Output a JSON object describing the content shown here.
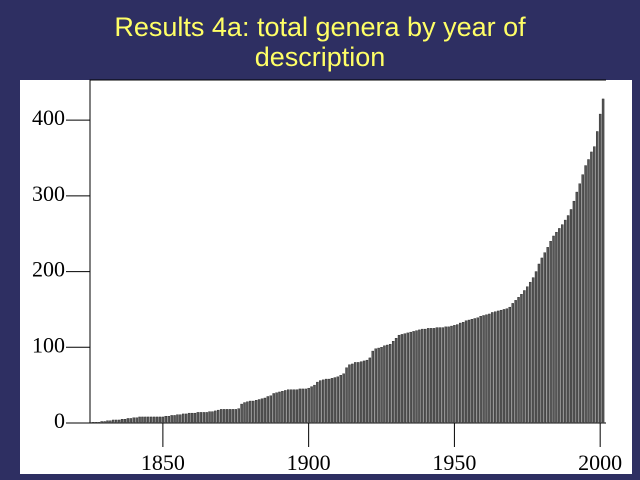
{
  "chart_data": {
    "type": "bar",
    "title": "Results 4a: total genera by year of description",
    "x": [
      1826,
      1827,
      1828,
      1829,
      1830,
      1831,
      1832,
      1833,
      1834,
      1835,
      1836,
      1837,
      1838,
      1839,
      1840,
      1841,
      1842,
      1843,
      1844,
      1845,
      1846,
      1847,
      1848,
      1849,
      1850,
      1851,
      1852,
      1853,
      1854,
      1855,
      1856,
      1857,
      1858,
      1859,
      1860,
      1861,
      1862,
      1863,
      1864,
      1865,
      1866,
      1867,
      1868,
      1869,
      1870,
      1871,
      1872,
      1873,
      1874,
      1875,
      1876,
      1877,
      1878,
      1879,
      1880,
      1881,
      1882,
      1883,
      1884,
      1885,
      1886,
      1887,
      1888,
      1889,
      1890,
      1891,
      1892,
      1893,
      1894,
      1895,
      1896,
      1897,
      1898,
      1899,
      1900,
      1901,
      1902,
      1903,
      1904,
      1905,
      1906,
      1907,
      1908,
      1909,
      1910,
      1911,
      1912,
      1913,
      1914,
      1915,
      1916,
      1917,
      1918,
      1919,
      1920,
      1921,
      1922,
      1923,
      1924,
      1925,
      1926,
      1927,
      1928,
      1929,
      1930,
      1931,
      1932,
      1933,
      1934,
      1935,
      1936,
      1937,
      1938,
      1939,
      1940,
      1941,
      1942,
      1943,
      1944,
      1945,
      1946,
      1947,
      1948,
      1949,
      1950,
      1951,
      1952,
      1953,
      1954,
      1955,
      1956,
      1957,
      1958,
      1959,
      1960,
      1961,
      1962,
      1963,
      1964,
      1965,
      1966,
      1967,
      1968,
      1969,
      1970,
      1971,
      1972,
      1973,
      1974,
      1975,
      1976,
      1977,
      1978,
      1979,
      1980,
      1981,
      1982,
      1983,
      1984,
      1985,
      1986,
      1987,
      1988,
      1989,
      1990,
      1991,
      1992,
      1993,
      1994,
      1995,
      1996,
      1997,
      1998,
      1999,
      2000,
      2001
    ],
    "values": [
      1,
      1,
      1,
      2,
      2,
      3,
      3,
      4,
      4,
      4,
      5,
      5,
      6,
      6,
      7,
      7,
      8,
      8,
      8,
      8,
      8,
      8,
      8,
      8,
      8,
      9,
      9,
      10,
      10,
      11,
      11,
      12,
      12,
      13,
      13,
      13,
      14,
      14,
      14,
      14,
      15,
      15,
      16,
      17,
      18,
      18,
      18,
      18,
      18,
      18,
      19,
      25,
      27,
      28,
      29,
      29,
      30,
      31,
      32,
      33,
      35,
      36,
      39,
      40,
      41,
      42,
      43,
      44,
      44,
      44,
      44,
      45,
      45,
      45,
      46,
      48,
      50,
      54,
      56,
      57,
      58,
      58,
      59,
      60,
      61,
      63,
      65,
      73,
      77,
      78,
      80,
      80,
      81,
      82,
      83,
      86,
      95,
      98,
      99,
      100,
      102,
      103,
      104,
      108,
      112,
      116,
      117,
      118,
      119,
      120,
      121,
      122,
      123,
      124,
      124,
      125,
      125,
      125,
      126,
      126,
      126,
      127,
      127,
      128,
      129,
      130,
      132,
      133,
      135,
      136,
      137,
      138,
      139,
      141,
      142,
      143,
      144,
      146,
      147,
      148,
      149,
      150,
      151,
      153,
      158,
      162,
      166,
      170,
      175,
      180,
      186,
      192,
      200,
      210,
      218,
      225,
      232,
      240,
      247,
      252,
      257,
      262,
      268,
      274,
      282,
      293,
      305,
      316,
      328,
      340,
      348,
      358,
      365,
      385,
      408,
      428
    ],
    "color": "#555555",
    "xlim": [
      1825,
      2002
    ],
    "xticks": [
      1850,
      1900,
      1950,
      2000
    ],
    "ylim": [
      0,
      453
    ],
    "yticks": [
      0,
      100,
      200,
      300,
      400
    ]
  }
}
